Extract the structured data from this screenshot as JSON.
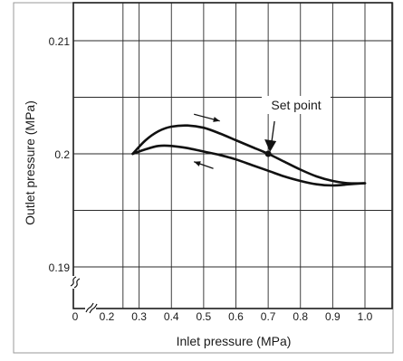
{
  "chart_data": {
    "type": "line",
    "xlabel": "Inlet pressure (MPa)",
    "ylabel": "Outlet pressure (MPa)",
    "x_ticks": [
      "0",
      "0.2",
      "0.3",
      "0.4",
      "0.5",
      "0.6",
      "0.7",
      "0.8",
      "0.9",
      "1.0"
    ],
    "y_ticks": [
      "0.19",
      "0.2",
      "0.21"
    ],
    "xlim": [
      0.2,
      1.05
    ],
    "ylim": [
      0.186,
      0.217
    ],
    "axis_break": {
      "x": true,
      "y": true
    },
    "grid": true,
    "series": [
      {
        "direction": "increasing inlet pressure",
        "points": [
          [
            0.28,
            0.2
          ],
          [
            0.32,
            0.2012
          ],
          [
            0.36,
            0.202
          ],
          [
            0.4,
            0.2024
          ],
          [
            0.45,
            0.2025
          ],
          [
            0.5,
            0.2023
          ],
          [
            0.55,
            0.2018
          ],
          [
            0.6,
            0.2012
          ],
          [
            0.65,
            0.2006
          ],
          [
            0.7,
            0.2
          ],
          [
            0.75,
            0.1993
          ],
          [
            0.8,
            0.1986
          ],
          [
            0.85,
            0.198
          ],
          [
            0.9,
            0.1976
          ],
          [
            0.95,
            0.1974
          ],
          [
            1.0,
            0.1974
          ]
        ]
      },
      {
        "direction": "decreasing inlet pressure",
        "points": [
          [
            1.0,
            0.1974
          ],
          [
            0.95,
            0.1973
          ],
          [
            0.9,
            0.1972
          ],
          [
            0.85,
            0.1973
          ],
          [
            0.8,
            0.1976
          ],
          [
            0.75,
            0.198
          ],
          [
            0.7,
            0.1985
          ],
          [
            0.65,
            0.199
          ],
          [
            0.6,
            0.1995
          ],
          [
            0.55,
            0.1999
          ],
          [
            0.5,
            0.2002
          ],
          [
            0.45,
            0.2005
          ],
          [
            0.4,
            0.2007
          ],
          [
            0.36,
            0.2007
          ],
          [
            0.32,
            0.2004
          ],
          [
            0.28,
            0.2
          ]
        ]
      }
    ],
    "annotations": [
      {
        "text": "Set point",
        "x": 0.7,
        "y": 0.2
      }
    ],
    "direction_arrows": [
      {
        "x": [
          0.47,
          0.55
        ],
        "y": [
          0.2035,
          0.2029
        ]
      },
      {
        "x": [
          0.53,
          0.47
        ],
        "y": [
          0.1987,
          0.1993
        ]
      }
    ]
  }
}
